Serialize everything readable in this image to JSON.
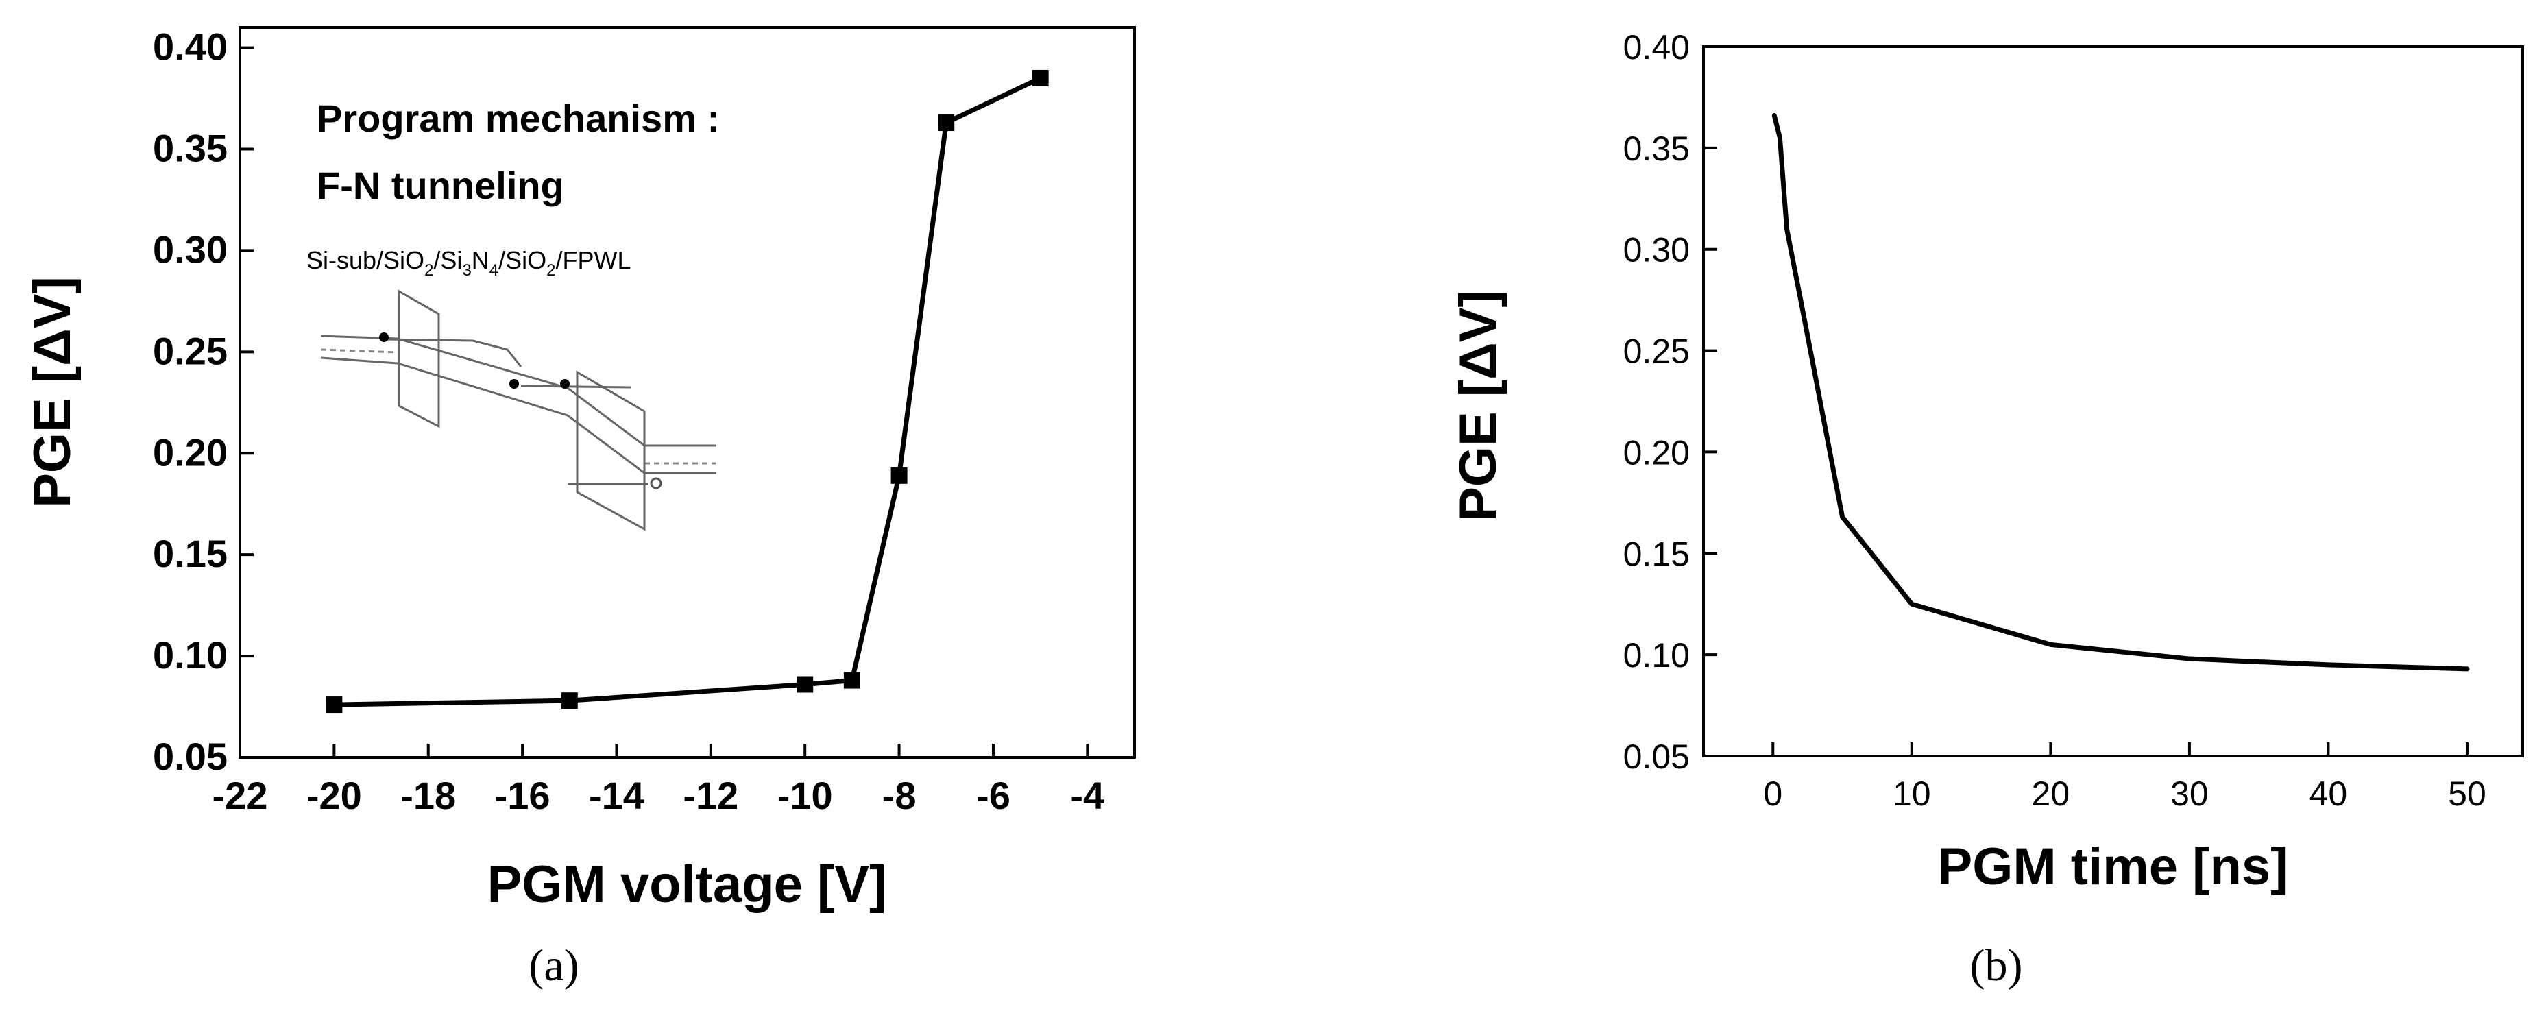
{
  "chart_data": [
    {
      "type": "line",
      "panel": "a",
      "xlabel": "PGM voltage [V]",
      "ylabel": "PGE [ΔV]",
      "xlim": [
        -22,
        -3
      ],
      "ylim": [
        0.05,
        0.41
      ],
      "xticks": [
        -22,
        -20,
        -18,
        -16,
        -14,
        -12,
        -10,
        -8,
        -6,
        -4
      ],
      "yticks": [
        0.05,
        0.1,
        0.15,
        0.2,
        0.25,
        0.3,
        0.35,
        0.4
      ],
      "markers": "square",
      "series": [
        {
          "x": [
            -20,
            -15,
            -10,
            -9,
            -8,
            -7,
            -5
          ],
          "y": [
            0.076,
            0.078,
            0.086,
            0.088,
            0.189,
            0.363,
            0.385
          ]
        }
      ],
      "annotations": [
        "Program mechanism :",
        "F-N tunneling"
      ],
      "inset_label": [
        "Si-sub/SiO",
        "2",
        "/Si",
        "3",
        "N",
        "4",
        "/SiO",
        "2",
        "/FPWL"
      ],
      "caption": "(a)"
    },
    {
      "type": "line",
      "panel": "b",
      "xlabel": "PGM time [ns]",
      "ylabel": "PGE [ΔV]",
      "xlim": [
        -5,
        54
      ],
      "ylim": [
        0.05,
        0.4
      ],
      "xticks": [
        0,
        10,
        20,
        30,
        40,
        50
      ],
      "yticks": [
        0.05,
        0.1,
        0.15,
        0.2,
        0.25,
        0.3,
        0.35,
        0.4
      ],
      "series": [
        {
          "x": [
            0.1,
            0.5,
            1,
            2,
            5,
            10,
            20,
            30,
            40,
            50
          ],
          "y": [
            0.366,
            0.355,
            0.31,
            0.275,
            0.168,
            0.125,
            0.105,
            0.098,
            0.095,
            0.093
          ]
        }
      ],
      "caption": "(b)"
    }
  ]
}
